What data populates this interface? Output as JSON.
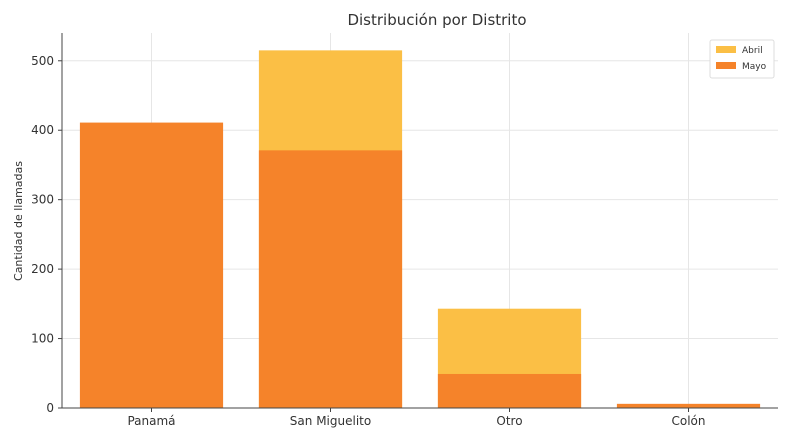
{
  "chart_data": {
    "type": "bar",
    "title": "Distribución por Distrito",
    "xlabel": "",
    "ylabel": "Cantidad de llamadas",
    "categories": [
      "Panamá",
      "San Miguelito",
      "Otro",
      "Colón"
    ],
    "series": [
      {
        "name": "Abril",
        "values": [
          0,
          515,
          143,
          0
        ],
        "color": "#FBBF45"
      },
      {
        "name": "Mayo",
        "values": [
          411,
          371,
          49,
          6
        ],
        "color": "#F5832A"
      }
    ],
    "ylim": [
      0,
      540
    ],
    "yticks": [
      0,
      100,
      200,
      300,
      400,
      500
    ],
    "grid": true,
    "legend_position": "top-right",
    "overlap": true
  }
}
